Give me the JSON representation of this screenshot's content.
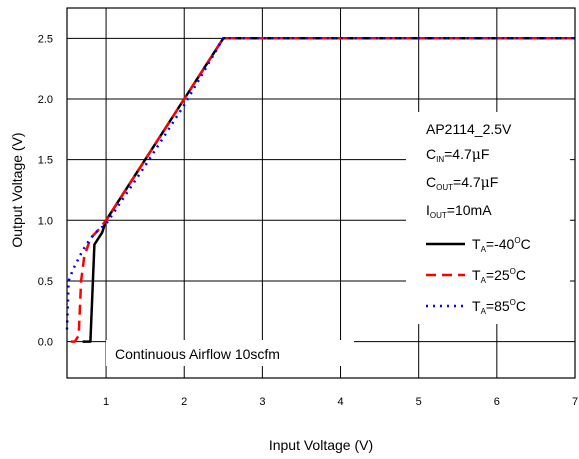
{
  "chart_data": {
    "type": "line",
    "title": "",
    "xlabel": "Input Voltage (V)",
    "ylabel": "Output Voltage (V)",
    "xlim": [
      0.5,
      7
    ],
    "ylim": [
      -0.3,
      2.75
    ],
    "grid": true,
    "x_ticks": [
      1,
      2,
      3,
      4,
      5,
      6,
      7
    ],
    "y_ticks": [
      0.0,
      0.5,
      1.0,
      1.5,
      2.0,
      2.5
    ],
    "x_tick_labels": [
      "1",
      "2",
      "3",
      "4",
      "5",
      "6",
      "7"
    ],
    "y_tick_labels": [
      "0.0",
      "0.5",
      "1.0",
      "1.5",
      "2.0",
      "2.5"
    ],
    "annotation": "Continuous Airflow 10scfm",
    "legend": {
      "placement": "right",
      "header": {
        "device": "AP2114_2.5V",
        "cin_main": "C",
        "cin_sub": "IN",
        "cin_value": "=4.7",
        "cin_mu": "μ",
        "cin_unit": "F",
        "cout_main": "C",
        "cout_sub": "OUT",
        "cout_value": "=4.7",
        "cout_mu": "μ",
        "cout_unit": "F",
        "iout_main": "I",
        "iout_sub": "OUT",
        "iout_value": "=10mA"
      }
    },
    "series": [
      {
        "name": "T_A=-40°C",
        "label_main": "T",
        "label_sub": "A",
        "label_value": "=-40",
        "label_sup": "O",
        "label_unit": "C",
        "color": "#000000",
        "dash": "solid",
        "x": [
          0.7,
          0.8,
          0.85,
          0.95,
          1.0,
          1.5,
          2.0,
          2.5,
          7.0
        ],
        "y": [
          0.0,
          0.0,
          0.8,
          0.9,
          1.0,
          1.5,
          2.0,
          2.5,
          2.5
        ]
      },
      {
        "name": "T_A=25°C",
        "label_main": "T",
        "label_sub": "A",
        "label_value": "=25",
        "label_sup": "O",
        "label_unit": "C",
        "color": "#ff0000",
        "dash": "dashed",
        "x": [
          0.55,
          0.6,
          0.65,
          0.68,
          0.72,
          0.8,
          0.9,
          1.0,
          1.5,
          2.0,
          2.5,
          7.0
        ],
        "y": [
          0.0,
          0.0,
          0.05,
          0.5,
          0.7,
          0.85,
          0.92,
          1.0,
          1.5,
          2.0,
          2.5,
          2.5
        ]
      },
      {
        "name": "T_A=85°C",
        "label_main": "T",
        "label_sub": "A",
        "label_value": "=85",
        "label_sup": "O",
        "label_unit": "C",
        "color": "#0000ff",
        "dash": "dotted",
        "x": [
          0.5,
          0.52,
          0.58,
          0.7,
          0.8,
          0.9,
          1.0,
          1.5,
          2.0,
          2.5,
          7.0
        ],
        "y": [
          0.1,
          0.5,
          0.6,
          0.75,
          0.85,
          0.92,
          0.97,
          1.45,
          1.95,
          2.5,
          2.5
        ]
      }
    ]
  }
}
